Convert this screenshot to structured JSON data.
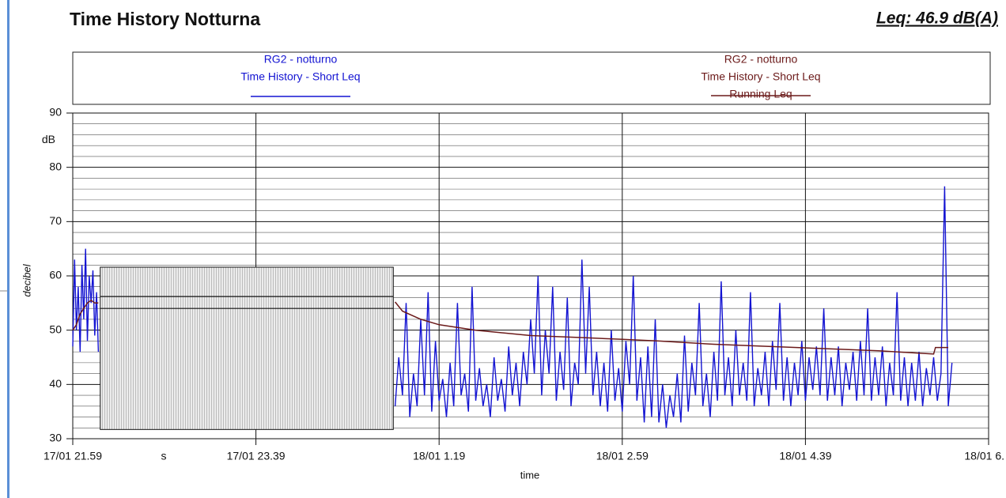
{
  "chart_data": {
    "type": "line",
    "title": "Time History Notturna",
    "subtitle": "Leq: 46.9 dB(A)",
    "ylabel": "decibel",
    "xlabel": "time",
    "y_unit": "dB",
    "x_unit": "s",
    "ylim": [
      30,
      90
    ],
    "yticks": [
      30,
      40,
      50,
      60,
      70,
      80,
      90
    ],
    "minor_grid_step": 2,
    "xlim": [
      0,
      500
    ],
    "xticks": [
      {
        "value": 0,
        "label": "17/01 21.59"
      },
      {
        "value": 100,
        "label": "17/01 23.39"
      },
      {
        "value": 200,
        "label": "18/01 1.19"
      },
      {
        "value": 300,
        "label": "18/01 2.59"
      },
      {
        "value": 400,
        "label": "18/01 4.39"
      },
      {
        "value": 500,
        "label": "18/01 6."
      }
    ],
    "grid": true,
    "legend": [
      {
        "lines": [
          "RG2 - notturno",
          "Time History - Short Leq"
        ],
        "series": 0
      },
      {
        "lines": [
          "RG2 - notturno",
          "Time History - Short Leq",
          "Running Leq"
        ],
        "series": 1
      }
    ],
    "masked_region": {
      "x": [
        15,
        175
      ],
      "y": [
        31.7,
        61.6
      ],
      "lines": [
        56.2,
        54.0
      ]
    },
    "series": [
      {
        "name": "Time History - Short Leq",
        "color": "#1414d2",
        "x": [
          0,
          1,
          2,
          3,
          4,
          5,
          6,
          7,
          8,
          9,
          10,
          11,
          12,
          13,
          14,
          15,
          176,
          178,
          180,
          182,
          184,
          186,
          188,
          190,
          192,
          194,
          196,
          198,
          200,
          202,
          204,
          206,
          208,
          210,
          212,
          214,
          216,
          218,
          220,
          222,
          224,
          226,
          228,
          230,
          232,
          234,
          236,
          238,
          240,
          242,
          244,
          246,
          248,
          250,
          252,
          254,
          256,
          258,
          260,
          262,
          264,
          266,
          268,
          270,
          272,
          274,
          276,
          278,
          280,
          282,
          284,
          286,
          288,
          290,
          292,
          294,
          296,
          298,
          300,
          302,
          304,
          306,
          308,
          310,
          312,
          314,
          316,
          318,
          320,
          322,
          324,
          326,
          328,
          330,
          332,
          334,
          336,
          338,
          340,
          342,
          344,
          346,
          348,
          350,
          352,
          354,
          356,
          358,
          360,
          362,
          364,
          366,
          368,
          370,
          372,
          374,
          376,
          378,
          380,
          382,
          384,
          386,
          388,
          390,
          392,
          394,
          396,
          398,
          400,
          402,
          404,
          406,
          408,
          410,
          412,
          414,
          416,
          418,
          420,
          422,
          424,
          426,
          428,
          430,
          432,
          434,
          436,
          438,
          440,
          442,
          444,
          446,
          448,
          450,
          452,
          454,
          456,
          458,
          460,
          462,
          464,
          466,
          468,
          470,
          472,
          474,
          476,
          478,
          480
        ],
        "values": [
          47,
          63,
          50,
          58,
          46,
          62,
          52,
          65,
          48,
          60,
          55,
          61,
          49,
          57,
          46,
          null,
          36,
          45,
          38,
          55,
          34,
          42,
          36,
          52,
          38,
          57,
          35,
          48,
          37,
          41,
          34,
          44,
          36,
          55,
          38,
          42,
          35,
          58,
          37,
          43,
          36,
          40,
          34,
          45,
          37,
          41,
          35,
          47,
          38,
          44,
          36,
          46,
          40,
          52,
          42,
          60,
          38,
          50,
          42,
          58,
          37,
          46,
          39,
          56,
          36,
          44,
          40,
          63,
          42,
          58,
          38,
          46,
          36,
          44,
          35,
          50,
          37,
          43,
          35,
          48,
          40,
          60,
          37,
          45,
          33,
          47,
          34,
          52,
          33,
          40,
          32,
          38,
          34,
          42,
          33,
          49,
          35,
          44,
          38,
          55,
          36,
          42,
          34,
          46,
          37,
          59,
          38,
          45,
          36,
          50,
          38,
          44,
          37,
          57,
          36,
          43,
          38,
          46,
          36,
          48,
          39,
          55,
          37,
          45,
          36,
          44,
          38,
          48,
          37,
          45,
          39,
          47,
          38,
          54,
          37,
          45,
          38,
          47,
          36,
          44,
          39,
          46,
          37,
          48,
          38,
          54,
          37,
          45,
          38,
          47,
          36,
          44,
          38,
          57,
          37,
          45,
          36,
          44,
          37,
          46,
          36,
          43,
          38,
          45,
          37,
          42,
          76.5,
          36,
          44
        ]
      },
      {
        "name": "Running Leq",
        "color": "#6b1a1a",
        "x": [
          0,
          2,
          4,
          6,
          8,
          10,
          12,
          14,
          15,
          176,
          180,
          190,
          200,
          220,
          250,
          280,
          300,
          320,
          350,
          380,
          410,
          440,
          460,
          470,
          471,
          478
        ],
        "values": [
          50,
          51,
          53,
          54,
          55,
          55.5,
          55,
          55,
          null,
          55.2,
          53.5,
          52,
          51,
          50,
          49,
          48.6,
          48.3,
          48,
          47.4,
          47,
          46.6,
          46.2,
          45.8,
          45.6,
          46.8,
          46.8
        ]
      }
    ]
  }
}
